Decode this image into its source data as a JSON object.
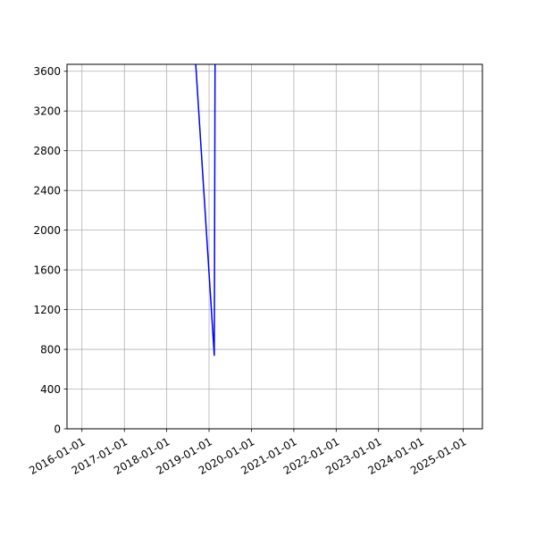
{
  "chart_data": {
    "type": "line",
    "title": "",
    "xlabel": "",
    "ylabel": "",
    "grid": true,
    "legend": "none",
    "xlim": [
      "2015-08-25",
      "2025-06-15"
    ],
    "ylim": [
      0,
      3670
    ],
    "x_ticks": [
      "2016-01-01",
      "2017-01-01",
      "2018-01-01",
      "2019-01-01",
      "2020-01-01",
      "2021-01-01",
      "2022-01-01",
      "2023-01-01",
      "2024-01-01",
      "2025-01-01"
    ],
    "y_ticks": [
      0,
      400,
      800,
      1200,
      1600,
      2000,
      2400,
      2800,
      3200,
      3600
    ],
    "series": [
      {
        "color": "#0000ff",
        "x": [
          "2018-09-01",
          "2019-02-15",
          "2019-02-22"
        ],
        "y": [
          3800,
          740,
          3800
        ]
      }
    ]
  }
}
